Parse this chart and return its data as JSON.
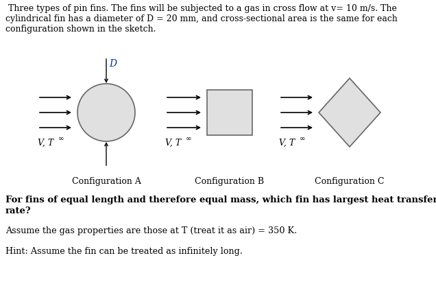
{
  "background_color": "#ffffff",
  "title_lines": [
    " Three types of pin fins. The fins will be subjected to a gas in cross flow at v= 10 m/s. The",
    "cylindrical fin has a diameter of D = 20 mm, and cross-sectional area is the same for each",
    "configuration shown in the sketch."
  ],
  "bold_question_line1": "For fins of equal length and therefore equal mass, which fin has largest heat transfer",
  "bold_question_line2": "rate?",
  "assume_text": "Assume the gas properties are those at T (treat it as air) = 350 K.",
  "hint_text": "Hint: Assume the fin can be treated as infinitely long.",
  "config_labels": [
    "Configuration A",
    "Configuration B",
    "Configuration C"
  ],
  "shape_fill": "#e0e0e0",
  "shape_edge": "#666666",
  "arrow_color": "#000000",
  "vt_italic": "V, T",
  "inf_sym": "∞",
  "D_label": "D"
}
